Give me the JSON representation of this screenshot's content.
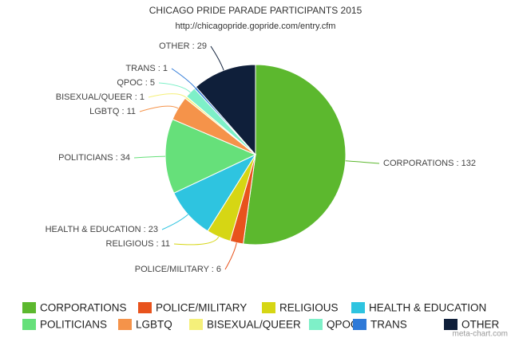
{
  "chart_data": {
    "type": "pie",
    "title": "CHICAGO PRIDE PARADE PARTICIPANTS 2015",
    "subtitle": "http://chicagopride.gopride.com/entry.cfm",
    "credit": "meta-chart.com",
    "categories": [
      "CORPORATIONS",
      "POLICE/MILITARY",
      "RELIGIOUS",
      "HEALTH & EDUCATION",
      "POLITICIANS",
      "LGBTQ",
      "BISEXUAL/QUEER",
      "QPOC",
      "TRANS",
      "OTHER"
    ],
    "values": [
      132,
      6,
      11,
      23,
      34,
      11,
      1,
      5,
      1,
      29
    ],
    "value_labels": [
      "CORPORATIONS : 132",
      "POLICE/MILITARY : 6",
      "RELIGIOUS : 11",
      "HEALTH & EDUCATION : 23",
      "POLITICIANS : 34",
      "LGBTQ : 11",
      "BISEXUAL/QUEER : 1",
      "QPOC : 5",
      "TRANS : 1",
      "OTHER : 29"
    ],
    "colors": [
      "#5cb82e",
      "#e8531d",
      "#d6d614",
      "#2ec4e0",
      "#66e07a",
      "#f5934a",
      "#f5f07a",
      "#7ef0c8",
      "#2f7ad8",
      "#0f1f3a"
    ],
    "legend": "bottom"
  }
}
